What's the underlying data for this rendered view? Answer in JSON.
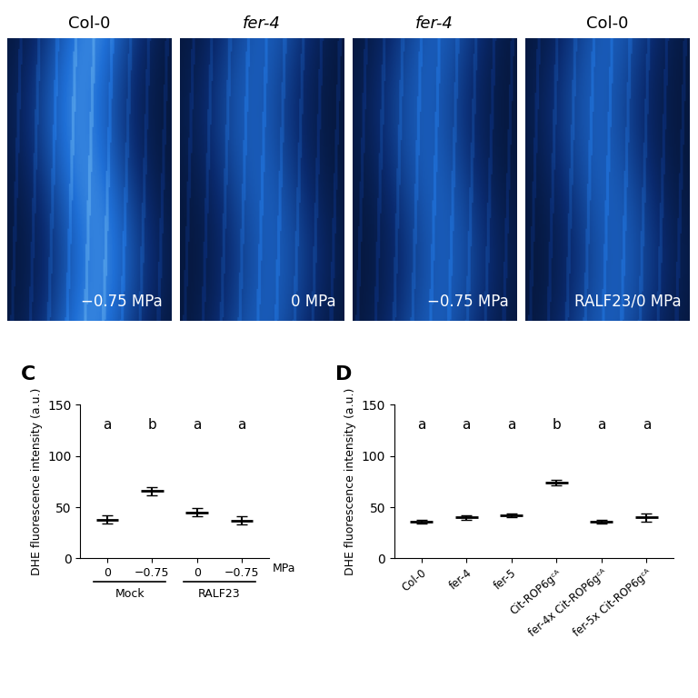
{
  "images": [
    {
      "title": "Col-0",
      "condition": "−0.75 MPa"
    },
    {
      "title": "fer-4",
      "condition": "0 MPa"
    },
    {
      "title": "fer-4",
      "condition": "−0.75 MPa"
    },
    {
      "title": "Col-0",
      "condition": "RALF23/0 MPa"
    }
  ],
  "chart_data": [
    {
      "type": "dot_plot",
      "panel": "C",
      "y_label": "DHE fluorescence intensity (a.u.)",
      "categories": [
        "0",
        "−0.75",
        "0",
        "−0.75"
      ],
      "groups": [
        "Mock",
        "Mock",
        "RALF23",
        "RALF23"
      ],
      "unit_label": "MPa",
      "values": [
        38,
        66,
        45,
        37
      ],
      "errors": [
        4,
        4,
        4,
        4
      ],
      "letters": [
        "a",
        "b",
        "a",
        "a"
      ],
      "ylim": [
        0,
        150
      ],
      "yticks": [
        0,
        50,
        100,
        150
      ]
    },
    {
      "type": "dot_plot",
      "panel": "D",
      "y_label": "DHE fluorescence intensity (a.u.)",
      "categories": [
        "Col-0",
        "fer-4",
        "fer-5",
        "Cit-ROP6gᶜᴬ",
        "fer-4x Cit-ROP6gᶜᴬ",
        "fer-5x Cit-ROP6gᶜᴬ"
      ],
      "values": [
        36,
        40,
        42,
        74,
        36,
        40
      ],
      "errors": [
        2,
        2,
        2,
        3,
        2,
        4
      ],
      "letters": [
        "a",
        "a",
        "a",
        "b",
        "a",
        "a"
      ],
      "ylim": [
        0,
        150
      ],
      "yticks": [
        0,
        50,
        100,
        150
      ]
    }
  ]
}
